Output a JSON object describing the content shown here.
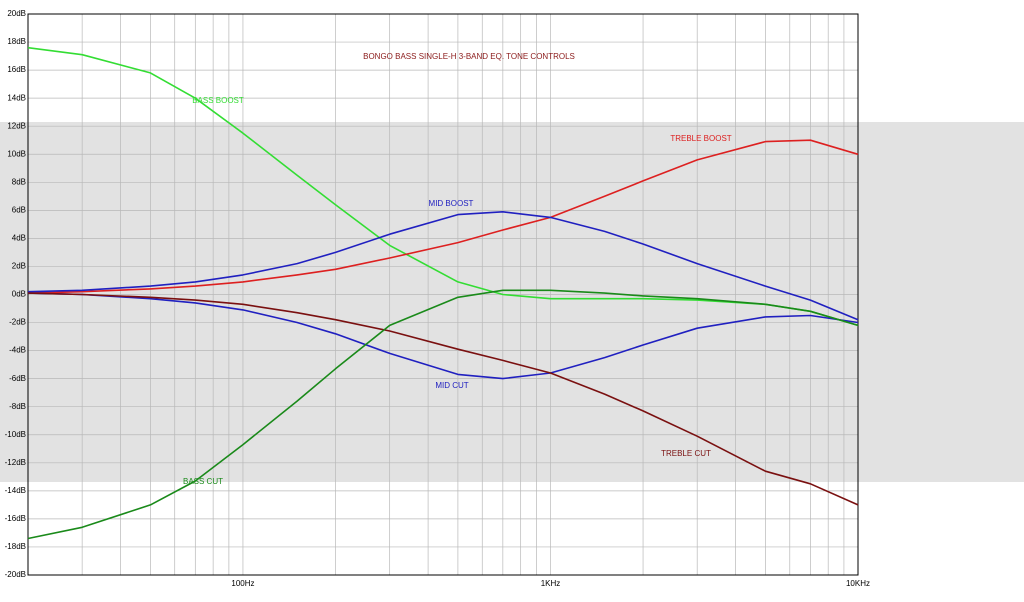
{
  "chart_data": {
    "type": "line",
    "title": "BONGO BASS SINGLE-H 3-BAND EQ. TONE CONTROLS",
    "x": [
      20,
      30,
      50,
      70,
      100,
      150,
      200,
      300,
      500,
      700,
      1000,
      1500,
      2000,
      3000,
      5000,
      7000,
      10000
    ],
    "xscale": "log",
    "xlim": [
      20,
      10000
    ],
    "xticks": [
      {
        "value": 100,
        "label": "100Hz"
      },
      {
        "value": 1000,
        "label": "1KHz"
      },
      {
        "value": 10000,
        "label": "10KHz"
      }
    ],
    "minor_xticks": [
      30,
      40,
      50,
      60,
      70,
      80,
      90,
      200,
      300,
      400,
      500,
      600,
      700,
      800,
      900,
      2000,
      3000,
      4000,
      5000,
      6000,
      7000,
      8000,
      9000
    ],
    "ylim": [
      -20,
      20
    ],
    "yticks": [
      {
        "value": 20,
        "label": "20dB"
      },
      {
        "value": 18,
        "label": "18dB"
      },
      {
        "value": 16,
        "label": "16dB"
      },
      {
        "value": 14,
        "label": "14dB"
      },
      {
        "value": 12,
        "label": "12dB"
      },
      {
        "value": 10,
        "label": "10dB"
      },
      {
        "value": 8,
        "label": "8dB"
      },
      {
        "value": 6,
        "label": "6dB"
      },
      {
        "value": 4,
        "label": "4dB"
      },
      {
        "value": 2,
        "label": "2dB"
      },
      {
        "value": 0,
        "label": "0dB"
      },
      {
        "value": -2,
        "label": "-2dB"
      },
      {
        "value": -4,
        "label": "-4dB"
      },
      {
        "value": -6,
        "label": "-6dB"
      },
      {
        "value": -8,
        "label": "-8dB"
      },
      {
        "value": -10,
        "label": "-10dB"
      },
      {
        "value": -12,
        "label": "-12dB"
      },
      {
        "value": -14,
        "label": "-14dB"
      },
      {
        "value": -16,
        "label": "-16dB"
      },
      {
        "value": -18,
        "label": "-18dB"
      },
      {
        "value": -20,
        "label": "-20dB"
      }
    ],
    "grid": true,
    "series": [
      {
        "name": "BASS BOOST",
        "color": "#33dd33",
        "values": [
          17.6,
          17.1,
          15.8,
          14.0,
          11.5,
          8.5,
          6.4,
          3.5,
          0.9,
          0,
          -0.3,
          -0.3,
          -0.3,
          -0.4,
          -0.7,
          -1.2,
          -2.2
        ]
      },
      {
        "name": "TREBLE BOOST",
        "color": "#dd2020",
        "values": [
          0.1,
          0.2,
          0.4,
          0.6,
          0.9,
          1.4,
          1.8,
          2.6,
          3.7,
          4.6,
          5.5,
          7.0,
          8.1,
          9.6,
          10.9,
          11.0,
          10.0
        ]
      },
      {
        "name": "MID BOOST",
        "color": "#2020c0",
        "values": [
          0.2,
          0.3,
          0.6,
          0.9,
          1.4,
          2.2,
          3.0,
          4.3,
          5.7,
          5.9,
          5.5,
          4.5,
          3.6,
          2.2,
          0.6,
          -0.4,
          -1.8
        ]
      },
      {
        "name": "MID CUT",
        "color": "#2020c0",
        "values": [
          0.1,
          0,
          -0.3,
          -0.6,
          -1.1,
          -2.0,
          -2.8,
          -4.2,
          -5.7,
          -6.0,
          -5.6,
          -4.5,
          -3.6,
          -2.4,
          -1.6,
          -1.5,
          -2.0
        ]
      },
      {
        "name": "TREBLE CUT",
        "color": "#7a1010",
        "values": [
          0.1,
          0,
          -0.2,
          -0.4,
          -0.7,
          -1.3,
          -1.8,
          -2.6,
          -3.9,
          -4.7,
          -5.6,
          -7.1,
          -8.3,
          -10.1,
          -12.6,
          -13.5,
          -15.0
        ]
      },
      {
        "name": "BASS CUT",
        "color": "#1a8a1a",
        "values": [
          -17.4,
          -16.6,
          -15.0,
          -13.3,
          -10.7,
          -7.6,
          -5.3,
          -2.2,
          -0.2,
          0.3,
          0.3,
          0.1,
          -0.1,
          -0.3,
          -0.7,
          -1.2,
          -2.2
        ]
      }
    ]
  }
}
